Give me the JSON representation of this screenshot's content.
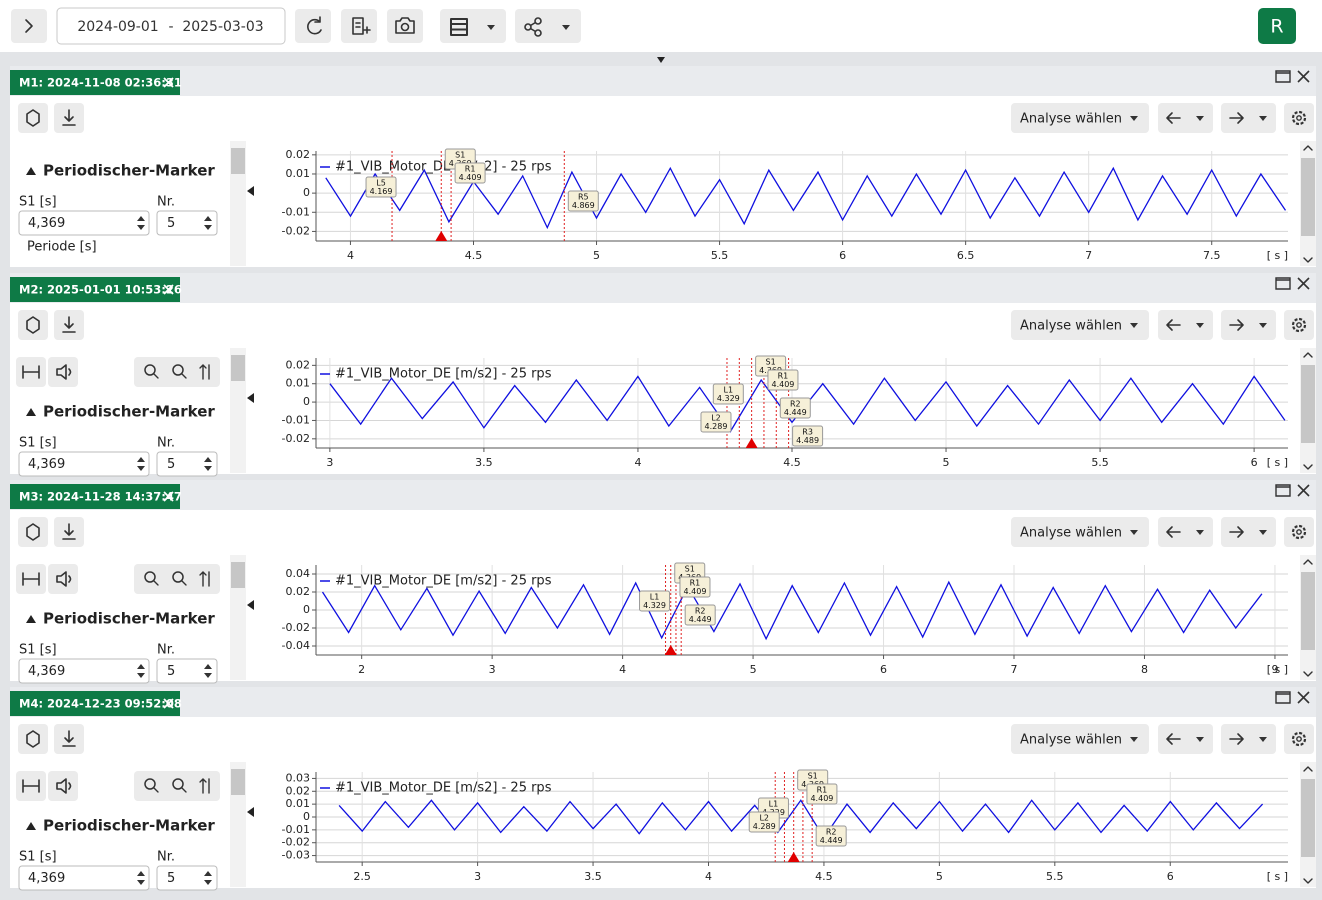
{
  "toolbar": {
    "date_from": "2024-09-01",
    "date_sep": "-",
    "date_to": "2025-03-03",
    "user_initial": "R"
  },
  "panels": [
    {
      "title": "M1: 2024-11-08 02:36:31",
      "analysis": "Analyse wählen",
      "section": "Periodischer-Marker",
      "s1_label": "S1 [s]",
      "s1_value": "4,369",
      "nr_label": "Nr.",
      "nr_value": "5",
      "extra_label": "Periode [s]",
      "chart_data": {
        "type": "line",
        "x_unit": "[ s ]",
        "grid": true,
        "xlim": [
          3.86,
          7.81
        ],
        "ylim": [
          -0.025,
          0.022
        ],
        "xticks": [
          4,
          4.5,
          5,
          5.5,
          6,
          6.5,
          7,
          7.5
        ],
        "yticks": [
          0.02,
          0.01,
          0,
          -0.01,
          -0.02
        ],
        "x": [
          3.9,
          4.0,
          4.1,
          4.2,
          4.3,
          4.4,
          4.5,
          4.6,
          4.7,
          4.8,
          4.9,
          5.0,
          5.1,
          5.2,
          5.3,
          5.4,
          5.5,
          5.6,
          5.7,
          5.8,
          5.9,
          6.0,
          6.1,
          6.2,
          6.3,
          6.4,
          6.5,
          6.6,
          6.7,
          6.8,
          6.9,
          7.0,
          7.1,
          7.2,
          7.3,
          7.4,
          7.5,
          7.6,
          7.7,
          7.8
        ],
        "series": [
          {
            "name": "#1_VIB_Motor_DE [m/s2] - 25 rps",
            "color": "#1010e0",
            "values": [
              0.008,
              -0.012,
              0.01,
              -0.009,
              0.012,
              -0.015,
              0.006,
              -0.011,
              0.009,
              -0.018,
              0.011,
              -0.013,
              0.01,
              -0.01,
              0.013,
              -0.012,
              0.007,
              -0.016,
              0.012,
              -0.009,
              0.011,
              -0.014,
              0.009,
              -0.012,
              0.01,
              -0.011,
              0.012,
              -0.013,
              0.008,
              -0.012,
              0.011,
              -0.01,
              0.013,
              -0.014,
              0.009,
              -0.011,
              0.012,
              -0.012,
              0.01,
              -0.009
            ]
          }
        ],
        "markers": [
          {
            "name": "S1",
            "value": 4.369
          },
          {
            "name": "R1",
            "value": 4.409
          },
          {
            "name": "L5",
            "value": 4.169
          },
          {
            "name": "R5",
            "value": 4.869
          }
        ]
      }
    },
    {
      "title": "M2: 2025-01-01 10:53:26",
      "analysis": "Analyse wählen",
      "section": "Periodischer-Marker",
      "s1_label": "S1 [s]",
      "s1_value": "4,369",
      "nr_label": "Nr.",
      "nr_value": "5",
      "chart_data": {
        "type": "line",
        "x_unit": "[ s ]",
        "grid": true,
        "xlim": [
          2.955,
          6.11
        ],
        "ylim": [
          -0.025,
          0.024
        ],
        "xticks": [
          3,
          3.5,
          4,
          4.5,
          5,
          5.5,
          6
        ],
        "yticks": [
          0.02,
          0.01,
          0,
          -0.01,
          -0.02
        ],
        "x": [
          3.0,
          3.1,
          3.2,
          3.3,
          3.4,
          3.5,
          3.6,
          3.7,
          3.8,
          3.9,
          4.0,
          4.1,
          4.2,
          4.3,
          4.4,
          4.5,
          4.6,
          4.7,
          4.8,
          4.9,
          5.0,
          5.1,
          5.2,
          5.3,
          5.4,
          5.5,
          5.6,
          5.7,
          5.8,
          5.9,
          6.0,
          6.1
        ],
        "series": [
          {
            "name": "#1_VIB_Motor_DE [m/s2] - 25 rps",
            "color": "#1010e0",
            "values": [
              0.01,
              -0.012,
              0.013,
              -0.009,
              0.011,
              -0.014,
              0.009,
              -0.011,
              0.012,
              -0.01,
              0.014,
              -0.013,
              0.008,
              -0.016,
              0.012,
              -0.011,
              0.01,
              -0.012,
              0.013,
              -0.01,
              0.011,
              -0.013,
              0.009,
              -0.012,
              0.012,
              -0.01,
              0.013,
              -0.011,
              0.01,
              -0.012,
              0.014,
              -0.01
            ]
          }
        ],
        "markers": [
          {
            "name": "S1",
            "value": 4.369
          },
          {
            "name": "R1",
            "value": 4.409
          },
          {
            "name": "L1",
            "value": 4.329
          },
          {
            "name": "R2",
            "value": 4.449
          },
          {
            "name": "L2",
            "value": 4.289
          },
          {
            "name": "R3",
            "value": 4.489
          }
        ]
      }
    },
    {
      "title": "M3: 2024-11-28 14:37:47",
      "analysis": "Analyse wählen",
      "section": "Periodischer-Marker",
      "s1_label": "S1 [s]",
      "s1_value": "4,369",
      "nr_label": "Nr.",
      "nr_value": "5",
      "chart_data": {
        "type": "line",
        "x_unit": "[ s ]",
        "grid": true,
        "xlim": [
          1.65,
          9.1
        ],
        "ylim": [
          -0.05,
          0.05
        ],
        "xticks": [
          2,
          3,
          4,
          5,
          6,
          7,
          8,
          9
        ],
        "yticks": [
          0.04,
          0.02,
          0,
          -0.02,
          -0.04
        ],
        "x": [
          1.7,
          1.9,
          2.1,
          2.3,
          2.5,
          2.7,
          2.9,
          3.1,
          3.3,
          3.5,
          3.7,
          3.9,
          4.1,
          4.3,
          4.5,
          4.7,
          4.9,
          5.1,
          5.3,
          5.5,
          5.7,
          5.9,
          6.1,
          6.3,
          6.5,
          6.7,
          6.9,
          7.1,
          7.3,
          7.5,
          7.7,
          7.9,
          8.1,
          8.3,
          8.5,
          8.7,
          8.9
        ],
        "series": [
          {
            "name": "#1_VIB_Motor_DE [m/s2] - 25 rps",
            "color": "#1010e0",
            "values": [
              0.02,
              -0.025,
              0.027,
              -0.022,
              0.024,
              -0.028,
              0.021,
              -0.026,
              0.025,
              -0.02,
              0.028,
              -0.027,
              0.03,
              -0.031,
              0.026,
              -0.024,
              0.029,
              -0.032,
              0.027,
              -0.025,
              0.03,
              -0.028,
              0.026,
              -0.03,
              0.031,
              -0.027,
              0.028,
              -0.029,
              0.025,
              -0.026,
              0.027,
              -0.024,
              0.023,
              -0.025,
              0.022,
              -0.02,
              0.018
            ]
          }
        ],
        "markers": [
          {
            "name": "S1",
            "value": 4.369
          },
          {
            "name": "R1",
            "value": 4.409
          },
          {
            "name": "L1",
            "value": 4.329
          },
          {
            "name": "R2",
            "value": 4.449
          }
        ]
      }
    },
    {
      "title": "M4: 2024-12-23 09:52:08",
      "analysis": "Analyse wählen",
      "section": "Periodischer-Marker",
      "s1_label": "S1 [s]",
      "s1_value": "4,369",
      "nr_label": "Nr.",
      "nr_value": "5",
      "chart_data": {
        "type": "line",
        "x_unit": "[ s ]",
        "grid": true,
        "xlim": [
          2.3,
          6.51
        ],
        "ylim": [
          -0.035,
          0.035
        ],
        "xticks": [
          2.5,
          3,
          3.5,
          4,
          4.5,
          5,
          5.5,
          6
        ],
        "yticks": [
          0.03,
          0.02,
          0.01,
          0,
          -0.01,
          -0.02,
          -0.03
        ],
        "x": [
          2.4,
          2.5,
          2.6,
          2.7,
          2.8,
          2.9,
          3.0,
          3.1,
          3.2,
          3.3,
          3.4,
          3.5,
          3.6,
          3.7,
          3.8,
          3.9,
          4.0,
          4.1,
          4.2,
          4.3,
          4.4,
          4.5,
          4.6,
          4.7,
          4.8,
          4.9,
          5.0,
          5.1,
          5.2,
          5.3,
          5.4,
          5.5,
          5.6,
          5.7,
          5.8,
          5.9,
          6.0,
          6.1,
          6.2,
          6.3,
          6.4
        ],
        "series": [
          {
            "name": "#1_VIB_Motor_DE [m/s2] - 25 rps",
            "color": "#1010e0",
            "values": [
              0.009,
              -0.011,
              0.012,
              -0.008,
              0.013,
              -0.01,
              0.011,
              -0.012,
              0.008,
              -0.011,
              0.012,
              -0.009,
              0.01,
              -0.013,
              0.011,
              -0.01,
              0.012,
              -0.011,
              0.009,
              -0.012,
              0.013,
              -0.016,
              0.01,
              -0.012,
              0.011,
              -0.009,
              0.012,
              -0.011,
              0.01,
              -0.012,
              0.013,
              -0.01,
              0.011,
              -0.012,
              0.009,
              -0.011,
              0.012,
              -0.01,
              0.011,
              -0.009,
              0.01
            ]
          }
        ],
        "markers": [
          {
            "name": "S1",
            "value": 4.369
          },
          {
            "name": "R1",
            "value": 4.409
          },
          {
            "name": "L1",
            "value": 4.329
          },
          {
            "name": "L2",
            "value": 4.289
          },
          {
            "name": "R2",
            "value": 4.449
          }
        ]
      }
    }
  ]
}
